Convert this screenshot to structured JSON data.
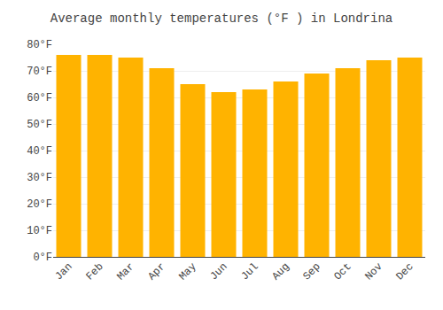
{
  "chart_data": {
    "type": "bar",
    "title": "Average monthly temperatures (°F ) in Londrina",
    "categories": [
      "Jan",
      "Feb",
      "Mar",
      "Apr",
      "May",
      "Jun",
      "Jul",
      "Aug",
      "Sep",
      "Oct",
      "Nov",
      "Dec"
    ],
    "values": [
      76,
      76,
      75,
      71,
      65,
      62,
      63,
      66,
      69,
      71,
      74,
      75
    ],
    "color": "#FFB300",
    "ylim": [
      0,
      80
    ],
    "yticks": [
      {
        "value": 0,
        "label": "0°F"
      },
      {
        "value": 10,
        "label": "10°F"
      },
      {
        "value": 20,
        "label": "20°F"
      },
      {
        "value": 30,
        "label": "30°F"
      },
      {
        "value": 40,
        "label": "40°F"
      },
      {
        "value": 50,
        "label": "50°F"
      },
      {
        "value": 60,
        "label": "60°F"
      },
      {
        "value": 70,
        "label": "70°F"
      },
      {
        "value": 80,
        "label": "80°F"
      }
    ],
    "grid": true
  }
}
